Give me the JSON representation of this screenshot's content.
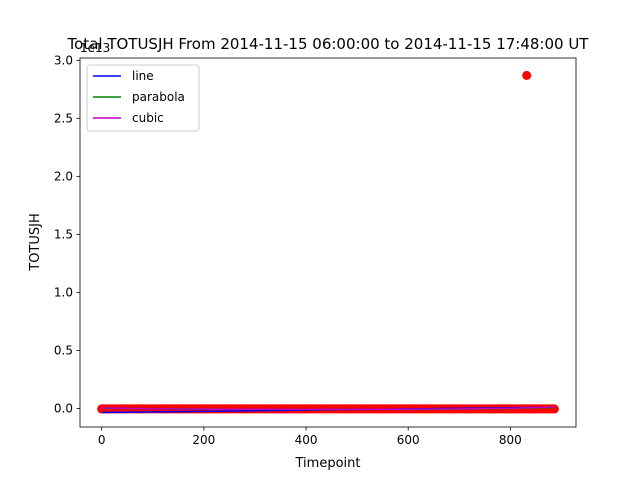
{
  "chart_data": {
    "type": "scatter",
    "title": "Total TOTUSJH From 2014-11-15 06:00:00 to 2014-11-15 17:48:00 UT",
    "xlabel": "Timepoint",
    "ylabel": "TOTUSJH",
    "y_offset_label": "1e13",
    "xlim": [
      -42.5,
      928.5
    ],
    "ylim": [
      -0.16,
      3.02
    ],
    "x_ticks": [
      0,
      200,
      400,
      600,
      800
    ],
    "x_tick_labels": [
      "0",
      "200",
      "400",
      "600",
      "800"
    ],
    "y_ticks": [
      0.0,
      0.5,
      1.0,
      1.5,
      2.0,
      2.5,
      3.0
    ],
    "y_tick_labels": [
      "0.0",
      "0.5",
      "1.0",
      "1.5",
      "2.0",
      "2.5",
      "3.0"
    ],
    "grid": false,
    "legend_position": "upper-left",
    "scatter": {
      "color": "#ff0000",
      "points": [
        [
          0,
          -0.004
        ],
        [
          40,
          -0.004
        ],
        [
          80,
          -0.004
        ],
        [
          120,
          -0.004
        ],
        [
          160,
          -0.004
        ],
        [
          200,
          -0.004
        ],
        [
          240,
          -0.004
        ],
        [
          280,
          -0.004
        ],
        [
          320,
          -0.004
        ],
        [
          360,
          -0.004
        ],
        [
          400,
          -0.004
        ],
        [
          440,
          -0.004
        ],
        [
          480,
          -0.004
        ],
        [
          520,
          -0.004
        ],
        [
          560,
          -0.004
        ],
        [
          600,
          -0.004
        ],
        [
          640,
          -0.004
        ],
        [
          680,
          -0.004
        ],
        [
          720,
          -0.004
        ],
        [
          760,
          -0.004
        ],
        [
          800,
          -0.004
        ],
        [
          840,
          -0.004
        ],
        [
          886,
          -0.004
        ],
        [
          832,
          2.87
        ]
      ]
    },
    "series": [
      {
        "name": "line",
        "color": "#0000ff",
        "x": [
          0,
          886
        ],
        "y": [
          -0.035,
          0.01
        ]
      },
      {
        "name": "parabola",
        "color": "#008000",
        "x": [
          0,
          100,
          200,
          300,
          400,
          500,
          600,
          700,
          800,
          886
        ],
        "y": [
          0.002,
          -0.003,
          -0.006,
          -0.008,
          -0.009,
          -0.009,
          -0.008,
          -0.005,
          0.0,
          0.008
        ]
      },
      {
        "name": "cubic",
        "color": "#bf00bf",
        "x": [
          0,
          100,
          200,
          300,
          400,
          500,
          600,
          700,
          800,
          886
        ],
        "y": [
          0.004,
          -0.003,
          -0.006,
          -0.007,
          -0.008,
          -0.008,
          -0.007,
          -0.004,
          0.002,
          0.012
        ]
      }
    ]
  }
}
